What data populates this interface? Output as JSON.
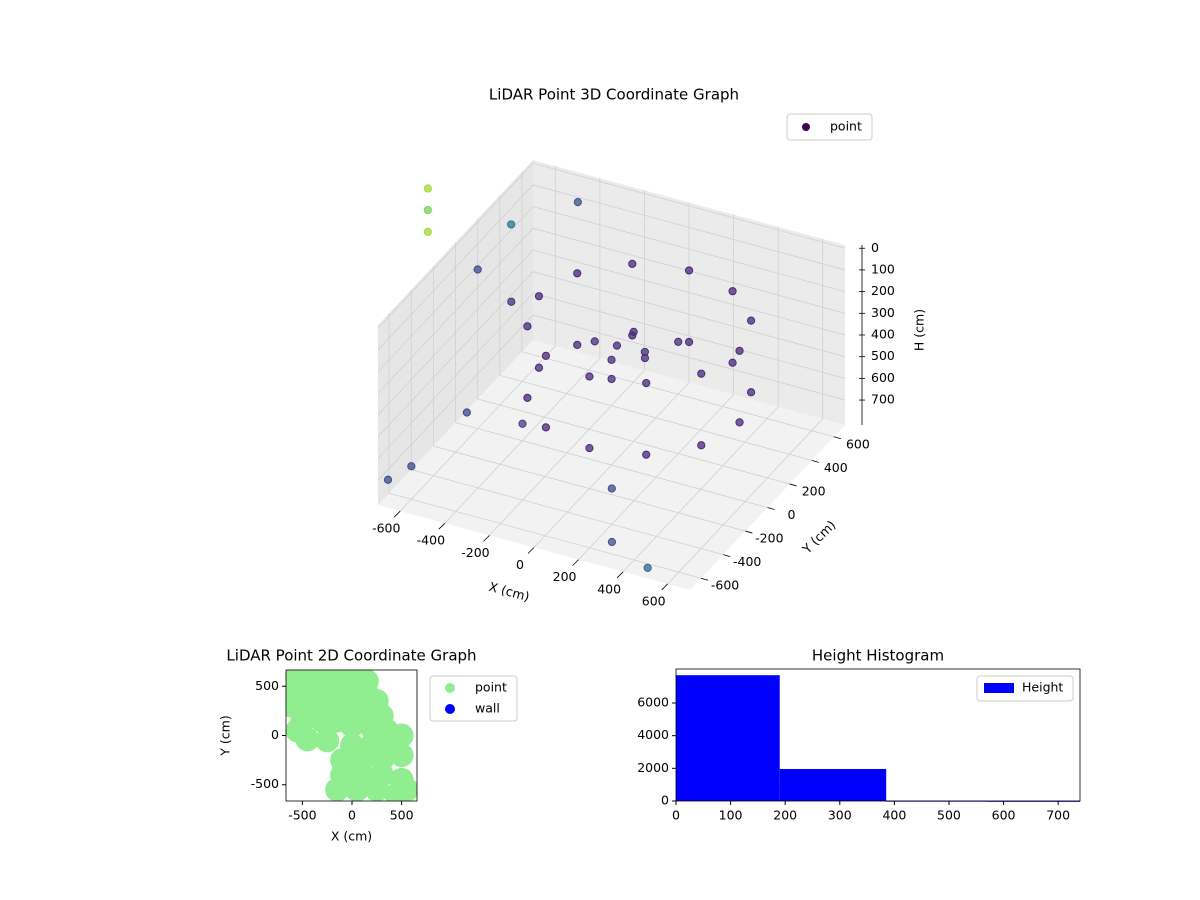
{
  "chart_data": [
    {
      "type": "scatter3d",
      "title": "LiDAR Point 3D Coordinate Graph",
      "x_label": "X (cm)",
      "y_label": "Y (cm)",
      "z_label": "H (cm)",
      "xlim": [
        -700,
        700
      ],
      "ylim": [
        -700,
        700
      ],
      "zlim": [
        815,
        -15
      ],
      "xticks": [
        -600,
        -400,
        -200,
        0,
        200,
        400,
        600
      ],
      "yticks": [
        -600,
        -400,
        -200,
        0,
        200,
        400,
        600
      ],
      "zticks": [
        0,
        100,
        200,
        300,
        400,
        500,
        600,
        700
      ],
      "grid": true,
      "legend": "upper right",
      "series": [
        {
          "name": "point",
          "color": "#440154",
          "x": [
            500,
            440,
            275,
            50,
            -175,
            -340,
            -400,
            -340,
            -175,
            50,
            275,
            440,
            500,
            440,
            275,
            50,
            -175,
            -340,
            -400,
            -340,
            -175,
            50,
            275,
            440,
            0,
            100,
            -100,
            50,
            150,
            -50,
            0,
            200,
            -680,
            -620,
            -500,
            -300,
            300,
            500,
            200,
            -650,
            -400,
            -700,
            -700,
            -700,
            -500,
            -300
          ],
          "y": [
            150,
            375,
            540,
            600,
            540,
            375,
            150,
            -75,
            -240,
            -300,
            -240,
            -75,
            150,
            375,
            540,
            600,
            540,
            375,
            150,
            -75,
            -240,
            -300,
            -240,
            -75,
            0,
            100,
            50,
            -100,
            0,
            150,
            200,
            200,
            -650,
            -560,
            -300,
            -200,
            -600,
            -680,
            -400,
            100,
            -100,
            -250,
            -250,
            -250,
            100,
            300
          ],
          "z": [
            230,
            230,
            230,
            230,
            230,
            230,
            230,
            230,
            230,
            230,
            230,
            230,
            560,
            560,
            560,
            560,
            560,
            560,
            560,
            560,
            560,
            560,
            560,
            560,
            330,
            320,
            300,
            350,
            280,
            360,
            310,
            300,
            720,
            690,
            550,
            600,
            760,
            780,
            650,
            150,
            120,
            -400,
            -300,
            -200,
            -100,
            -150
          ],
          "colors": [
            "#482878",
            "#482878",
            "#482878",
            "#482878",
            "#482878",
            "#482878",
            "#482878",
            "#482878",
            "#482878",
            "#482878",
            "#482878",
            "#482878",
            "#482878",
            "#482878",
            "#482878",
            "#482878",
            "#482878",
            "#482878",
            "#482878",
            "#482878",
            "#482878",
            "#482878",
            "#482878",
            "#482878",
            "#472d7b",
            "#472d7b",
            "#472d7b",
            "#472d7b",
            "#472d7b",
            "#472d7b",
            "#472d7b",
            "#472d7b",
            "#3e4a89",
            "#3e4a89",
            "#414487",
            "#433e85",
            "#3b528b",
            "#31688e",
            "#3e4a89",
            "#3e4a89",
            "#46327e",
            "#a0da39",
            "#7ad151",
            "#a0da39",
            "#2a788e",
            "#3b528b"
          ]
        }
      ]
    },
    {
      "type": "scatter",
      "title": "LiDAR Point 2D Coordinate Graph",
      "x_label": "X (cm)",
      "y_label": "Y (cm)",
      "xlim": [
        -665,
        655
      ],
      "ylim": [
        -665,
        665
      ],
      "xticks": [
        -500,
        0,
        500
      ],
      "yticks": [
        -500,
        0,
        500
      ],
      "legend": "outside right",
      "series": [
        {
          "name": "point",
          "color": "#90ee90",
          "x": [
            -600,
            -450,
            -300,
            -150,
            0,
            150,
            -600,
            -450,
            -300,
            -150,
            0,
            150,
            250,
            -600,
            -450,
            -300,
            -150,
            0,
            150,
            300,
            -500,
            -300,
            -150,
            0,
            200,
            350,
            -550,
            -450,
            -250,
            0,
            200,
            400,
            500,
            -100,
            100,
            300,
            500,
            -100,
            100,
            300,
            500,
            -150,
            50,
            250,
            450,
            550
          ],
          "y": [
            600,
            600,
            600,
            600,
            580,
            550,
            450,
            450,
            450,
            450,
            450,
            420,
            350,
            300,
            300,
            300,
            300,
            300,
            250,
            200,
            150,
            150,
            150,
            100,
            80,
            50,
            50,
            -40,
            -50,
            -100,
            -100,
            -50,
            0,
            -250,
            -250,
            -250,
            -200,
            -400,
            -400,
            -400,
            -450,
            -550,
            -550,
            -550,
            -600,
            -550
          ]
        },
        {
          "name": "wall",
          "color": "#0000ff",
          "x": [],
          "y": []
        }
      ]
    },
    {
      "type": "histogram",
      "title": "Height Histogram",
      "bins": [
        0,
        190,
        385,
        570,
        740
      ],
      "values": [
        7700,
        1960,
        20,
        10
      ],
      "name": "Height",
      "color": "#0000ff",
      "xlim": [
        0,
        740
      ],
      "ylim": [
        0,
        8080
      ],
      "xticks": [
        0,
        100,
        200,
        300,
        400,
        500,
        600,
        700
      ],
      "yticks": [
        0,
        2000,
        4000,
        6000
      ],
      "legend": "upper right"
    }
  ]
}
